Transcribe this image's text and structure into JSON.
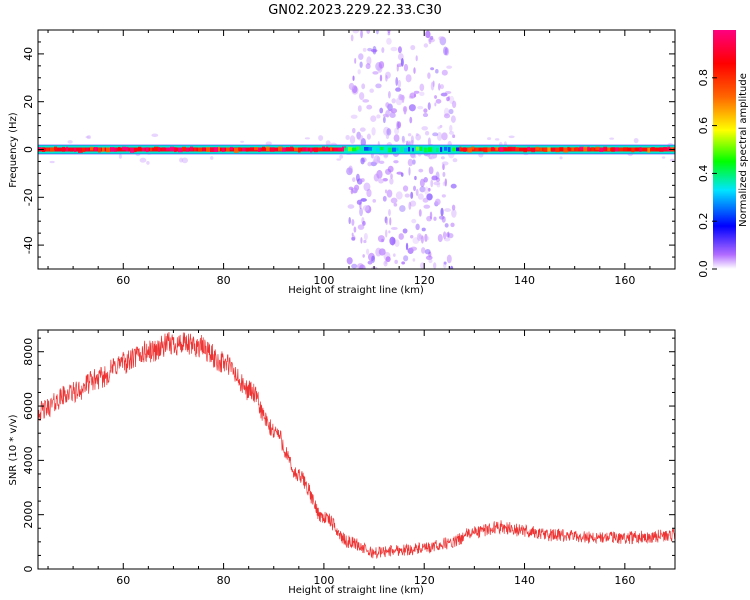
{
  "title": "GN02.2023.229.22.33.C30",
  "chart_data": [
    {
      "type": "heatmap",
      "xlabel": "Height of straight line (km)",
      "ylabel": "Frequency (Hz)",
      "xlim": [
        43,
        170
      ],
      "ylim": [
        -50,
        50
      ],
      "xticks": [
        60,
        80,
        100,
        120,
        140,
        160
      ],
      "yticks": [
        -40,
        -20,
        0,
        20,
        40
      ],
      "colorbar": {
        "label": "Normalized spectral amplitude",
        "range": [
          0.0,
          1.0
        ],
        "ticks": [
          0.0,
          0.2,
          0.4,
          0.6,
          0.8
        ],
        "colors": [
          "#ffffff",
          "#b26cff",
          "#0000ff",
          "#00e5ff",
          "#00ff00",
          "#ffff00",
          "#ff6600",
          "#ff0000",
          "#ff0080"
        ]
      },
      "main_line": {
        "frequency_hz": 0,
        "halfwidth_hz": 2,
        "segments": [
          {
            "x": [
              43,
              104
            ],
            "amplitude": 0.9
          },
          {
            "x": [
              104,
              127
            ],
            "amplitude": 0.4
          },
          {
            "x": [
              127,
              170
            ],
            "amplitude": 0.85
          }
        ]
      },
      "noise_band": {
        "x": [
          105,
          126
        ],
        "frequency_hz": [
          -50,
          50
        ],
        "amplitude": 0.05
      }
    },
    {
      "type": "line",
      "xlabel": "Height of straight line (km)",
      "ylabel": "SNR (10 * v/v)",
      "xlim": [
        43,
        170
      ],
      "ylim": [
        0,
        8800
      ],
      "xticks": [
        60,
        80,
        100,
        120,
        140,
        160
      ],
      "yticks": [
        0,
        2000,
        4000,
        6000,
        8000
      ],
      "color": "#ee3333",
      "series": [
        {
          "x": [
            43,
            50,
            55,
            60,
            65,
            70,
            75,
            80,
            85,
            90,
            95,
            100,
            105,
            110,
            115,
            120,
            125,
            130,
            135,
            140,
            145,
            150,
            155,
            160,
            165,
            170
          ],
          "values": [
            5800,
            6500,
            7000,
            7600,
            8000,
            8300,
            8200,
            7600,
            6600,
            5100,
            3400,
            1900,
            1000,
            600,
            700,
            750,
            950,
            1350,
            1550,
            1400,
            1250,
            1200,
            1150,
            1150,
            1200,
            1250
          ]
        }
      ]
    }
  ]
}
